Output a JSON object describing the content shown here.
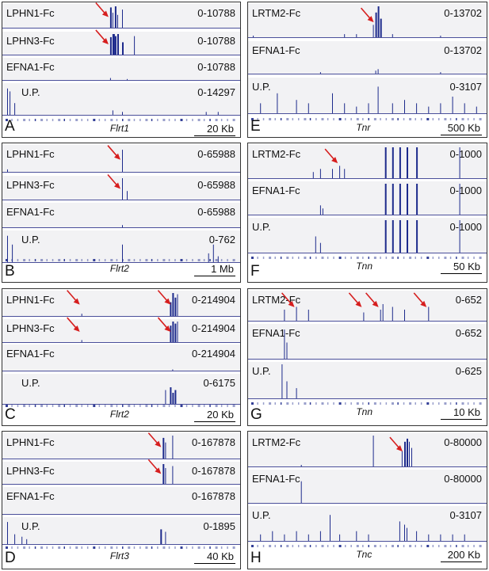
{
  "colors": {
    "signal": "#1d2a8c",
    "arrow": "#d61e1e",
    "track_bg": "#f2f2f4",
    "axis": "#4a4f9a"
  },
  "panels": [
    {
      "letter": "A",
      "gene": "Flrt1",
      "scale": "20 Kb",
      "tracks": [
        {
          "name": "LPHN1-Fc",
          "range": "0-10788"
        },
        {
          "name": "LPHN3-Fc",
          "range": "0-10788"
        },
        {
          "name": "EFNA1-Fc",
          "range": "0-10788"
        },
        {
          "name": "U.P.",
          "range": "0-14297"
        }
      ]
    },
    {
      "letter": "B",
      "gene": "Flrt2",
      "scale": "1 Mb",
      "tracks": [
        {
          "name": "LPHN1-Fc",
          "range": "0-65988"
        },
        {
          "name": "LPHN3-Fc",
          "range": "0-65988"
        },
        {
          "name": "EFNA1-Fc",
          "range": "0-65988"
        },
        {
          "name": "U.P.",
          "range": "0-762"
        }
      ]
    },
    {
      "letter": "C",
      "gene": "Flrt2",
      "scale": "20 Kb",
      "tracks": [
        {
          "name": "LPHN1-Fc",
          "range": "0-214904"
        },
        {
          "name": "LPHN3-Fc",
          "range": "0-214904"
        },
        {
          "name": "EFNA1-Fc",
          "range": "0-214904"
        },
        {
          "name": "U.P.",
          "range": "0-6175"
        }
      ]
    },
    {
      "letter": "D",
      "gene": "Flrt3",
      "scale": "40 Kb",
      "tracks": [
        {
          "name": "LPHN1-Fc",
          "range": "0-167878"
        },
        {
          "name": "LPHN3-Fc",
          "range": "0-167878"
        },
        {
          "name": "EFNA1-Fc",
          "range": "0-167878"
        },
        {
          "name": "U.P.",
          "range": "0-1895"
        }
      ]
    },
    {
      "letter": "E",
      "gene": "Tnr",
      "scale": "500 Kb",
      "tracks": [
        {
          "name": "LRTM2-Fc",
          "range": "0-13702"
        },
        {
          "name": "EFNA1-Fc",
          "range": "0-13702"
        },
        {
          "name": "U.P.",
          "range": "0-3107"
        }
      ]
    },
    {
      "letter": "F",
      "gene": "Tnn",
      "scale": "50 Kb",
      "tracks": [
        {
          "name": "LRTM2-Fc",
          "range": "0-1000"
        },
        {
          "name": "EFNA1-Fc",
          "range": "0-1000"
        },
        {
          "name": "U.P.",
          "range": "0-1000"
        }
      ]
    },
    {
      "letter": "G",
      "gene": "Tnn",
      "scale": "10 Kb",
      "tracks": [
        {
          "name": "LRTM2-Fc",
          "range": "0-652"
        },
        {
          "name": "EFNA1-Fc",
          "range": "0-652"
        },
        {
          "name": "U.P.",
          "range": "0-625"
        }
      ]
    },
    {
      "letter": "H",
      "gene": "Tnc",
      "scale": "200 Kb",
      "tracks": [
        {
          "name": "LRTM2-Fc",
          "range": "0-80000"
        },
        {
          "name": "EFNA1-Fc",
          "range": "0-80000"
        },
        {
          "name": "U.P.",
          "range": "0-3107"
        }
      ]
    }
  ]
}
